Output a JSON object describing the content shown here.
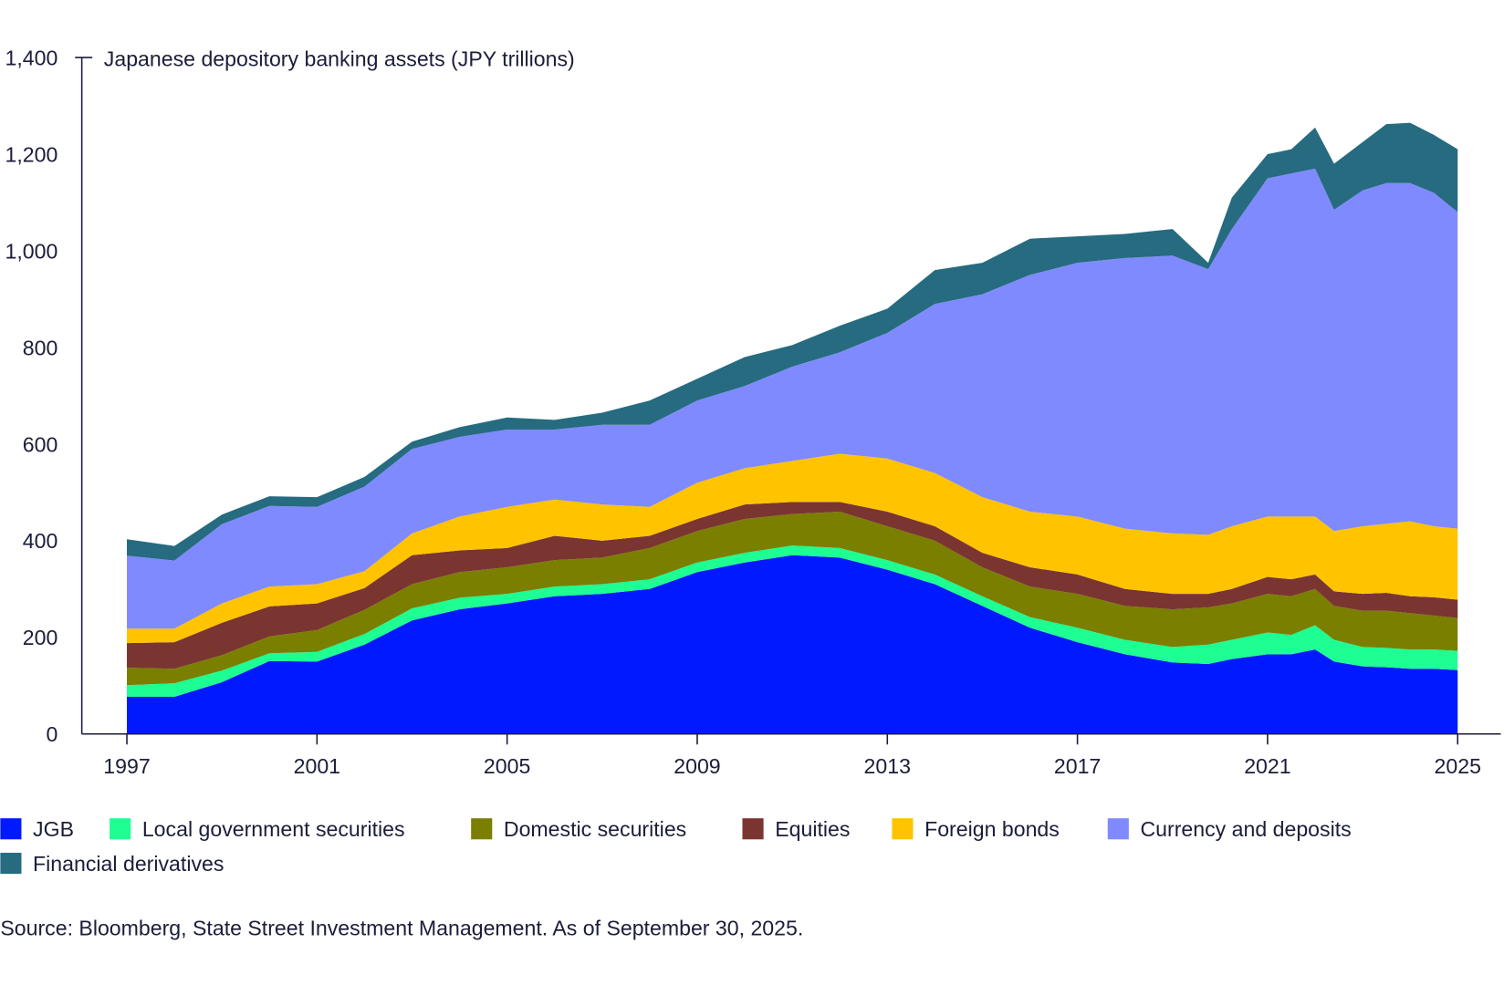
{
  "chart_data": {
    "type": "area",
    "stacked": true,
    "title": "Japanese depository banking assets (JPY trillions)",
    "xlabel": "",
    "ylabel": "",
    "ylim": [
      0,
      1400
    ],
    "xlim": [
      1997,
      2025
    ],
    "yticks": [
      0,
      200,
      400,
      600,
      800,
      1000,
      1200,
      1400
    ],
    "ytick_labels": [
      "0",
      "200",
      "400",
      "600",
      "800",
      "1,000",
      "1,200",
      "1,400"
    ],
    "xticks": [
      1997,
      2001,
      2005,
      2009,
      2013,
      2017,
      2021,
      2025
    ],
    "xtick_labels": [
      "1997",
      "2001",
      "2005",
      "2009",
      "2013",
      "2017",
      "2021",
      "2025"
    ],
    "grid": false,
    "legend_position": "bottom",
    "x": [
      1997,
      1998,
      1999,
      2000,
      2001,
      2002,
      2003,
      2004,
      2005,
      2006,
      2007,
      2008,
      2009,
      2010,
      2011,
      2012,
      2013,
      2014,
      2015,
      2016,
      2017,
      2018,
      2019,
      2019.75,
      2020.25,
      2021,
      2021.5,
      2022,
      2022.4,
      2023,
      2023.5,
      2024,
      2024.5,
      2025
    ],
    "series": [
      {
        "name": "JGB",
        "color": "#0019ff",
        "values": [
          77,
          77,
          107,
          151,
          150,
          185,
          235,
          258,
          270,
          285,
          290,
          300,
          335,
          355,
          370,
          365,
          340,
          310,
          265,
          220,
          190,
          165,
          148,
          145,
          155,
          165,
          165,
          175,
          150,
          140,
          138,
          135,
          135,
          132
        ]
      },
      {
        "name": "Local government securities",
        "color": "#1dff93",
        "values": [
          24,
          28,
          24,
          16,
          20,
          22,
          25,
          24,
          20,
          20,
          20,
          20,
          20,
          20,
          20,
          20,
          20,
          20,
          20,
          22,
          30,
          30,
          32,
          40,
          40,
          45,
          40,
          50,
          45,
          40,
          40,
          40,
          40,
          40
        ]
      },
      {
        "name": "Domestic securities",
        "color": "#7a7f00",
        "values": [
          36,
          30,
          32,
          35,
          45,
          50,
          50,
          53,
          55,
          55,
          55,
          65,
          65,
          70,
          65,
          75,
          70,
          70,
          60,
          63,
          70,
          70,
          78,
          77,
          75,
          80,
          80,
          75,
          70,
          75,
          77,
          75,
          70,
          68
        ]
      },
      {
        "name": "Equities",
        "color": "#7b3531",
        "values": [
          51,
          55,
          67,
          62,
          55,
          45,
          60,
          45,
          40,
          50,
          35,
          25,
          25,
          30,
          25,
          20,
          30,
          30,
          30,
          40,
          40,
          35,
          32,
          28,
          30,
          35,
          35,
          30,
          30,
          35,
          37,
          35,
          38,
          38
        ]
      },
      {
        "name": "Foreign bonds",
        "color": "#ffc300",
        "values": [
          30,
          28,
          40,
          41,
          40,
          35,
          45,
          70,
          85,
          75,
          75,
          60,
          75,
          75,
          85,
          100,
          110,
          110,
          115,
          115,
          120,
          125,
          125,
          122,
          130,
          125,
          130,
          120,
          125,
          140,
          143,
          155,
          147,
          147
        ]
      },
      {
        "name": "Currency and deposits",
        "color": "#808aff",
        "values": [
          151,
          141,
          164,
          167,
          160,
          175,
          175,
          165,
          160,
          145,
          165,
          170,
          170,
          170,
          195,
          210,
          260,
          350,
          420,
          490,
          525,
          560,
          575,
          550,
          615,
          700,
          710,
          720,
          665,
          695,
          705,
          700,
          690,
          655
        ]
      },
      {
        "name": "Financial derivatives",
        "color": "#266b80",
        "values": [
          34,
          30,
          20,
          20,
          20,
          20,
          15,
          20,
          25,
          20,
          25,
          50,
          45,
          60,
          45,
          55,
          50,
          70,
          65,
          75,
          55,
          50,
          55,
          13,
          65,
          50,
          50,
          85,
          95,
          100,
          122,
          125,
          120,
          130
        ]
      }
    ]
  },
  "footer": {
    "source": "Source: Bloomberg, State Street Investment Management. As of September 30, 2025."
  },
  "colors": {
    "text": "#1b1d3a",
    "axis": "#1b1d3a"
  }
}
